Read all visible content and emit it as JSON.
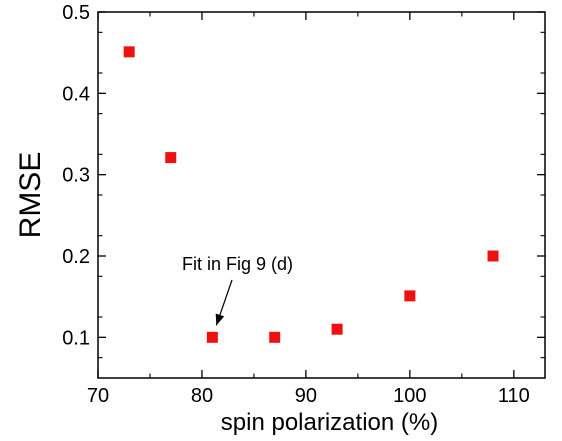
{
  "chart_data": {
    "type": "scatter",
    "title": "",
    "xlabel": "spin polarization (%)",
    "ylabel": "RMSE",
    "xlim": [
      70,
      113
    ],
    "ylim": [
      0.05,
      0.5
    ],
    "x_ticks": [
      70,
      80,
      90,
      100,
      110
    ],
    "y_ticks": [
      0.1,
      0.2,
      0.3,
      0.4,
      0.5
    ],
    "x_tick_labels": [
      "70",
      "80",
      "90",
      "100",
      "110"
    ],
    "y_tick_labels": [
      "0.1",
      "0.2",
      "0.3",
      "0.4",
      "0.5"
    ],
    "grid": false,
    "marker": "square",
    "marker_color": "#ee1111",
    "series": [
      {
        "points": [
          {
            "x": 73,
            "y": 0.451
          },
          {
            "x": 77,
            "y": 0.321
          },
          {
            "x": 81,
            "y": 0.1
          },
          {
            "x": 87,
            "y": 0.1
          },
          {
            "x": 93,
            "y": 0.11
          },
          {
            "x": 100,
            "y": 0.151
          },
          {
            "x": 108,
            "y": 0.2
          }
        ]
      }
    ],
    "annotations": [
      {
        "text": "Fit in Fig 9 (d)",
        "target": {
          "x": 81,
          "y": 0.1
        }
      }
    ]
  }
}
